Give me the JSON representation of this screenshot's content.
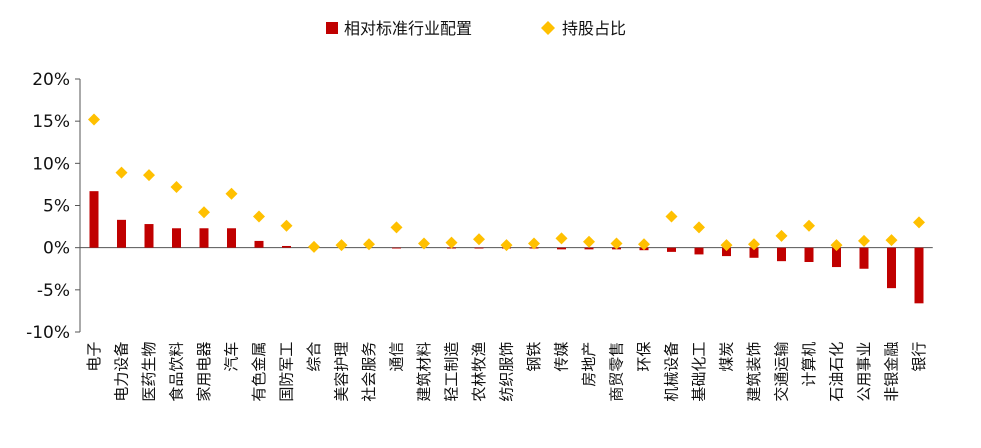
{
  "chart_data": {
    "type": "bar",
    "categories": [
      "电子",
      "电力设备",
      "医药生物",
      "食品饮料",
      "家用电器",
      "汽车",
      "有色金属",
      "国防军工",
      "综合",
      "美容护理",
      "社会服务",
      "通信",
      "建筑材料",
      "轻工制造",
      "农林牧渔",
      "纺织服饰",
      "钢铁",
      "传媒",
      "房地产",
      "商贸零售",
      "环保",
      "机械设备",
      "基础化工",
      "煤炭",
      "建筑装饰",
      "交通运输",
      "计算机",
      "石油石化",
      "公用事业",
      "非银金融",
      "银行"
    ],
    "series": [
      {
        "name": "相对标准行业配置",
        "type": "bar",
        "color": "#C00000",
        "values": [
          6.7,
          3.3,
          2.8,
          2.3,
          2.3,
          2.3,
          0.8,
          0.2,
          0.1,
          0.0,
          0.0,
          -0.1,
          0.0,
          -0.1,
          -0.1,
          -0.1,
          -0.1,
          -0.2,
          -0.2,
          -0.2,
          -0.3,
          -0.5,
          -0.8,
          -1.0,
          -1.2,
          -1.6,
          -1.7,
          -2.3,
          -2.5,
          -4.8,
          -6.6
        ]
      },
      {
        "name": "持股占比",
        "type": "scatter",
        "marker": "diamond",
        "color": "#FFC000",
        "values": [
          15.2,
          8.9,
          8.6,
          7.2,
          4.2,
          6.4,
          3.7,
          2.6,
          0.1,
          0.3,
          0.4,
          2.4,
          0.5,
          0.6,
          1.0,
          0.3,
          0.5,
          1.1,
          0.7,
          0.5,
          0.4,
          3.7,
          2.4,
          0.3,
          0.4,
          1.4,
          2.6,
          0.3,
          0.8,
          0.9,
          3.0
        ]
      }
    ],
    "y_ticks": [
      "20%",
      "15%",
      "10%",
      "5%",
      "0%",
      "-5%",
      "-10%"
    ],
    "y_tick_values": [
      20,
      15,
      10,
      5,
      0,
      -5,
      -10
    ],
    "ylim": [
      -10,
      20
    ],
    "legend_position": "top-center",
    "grid": false
  }
}
